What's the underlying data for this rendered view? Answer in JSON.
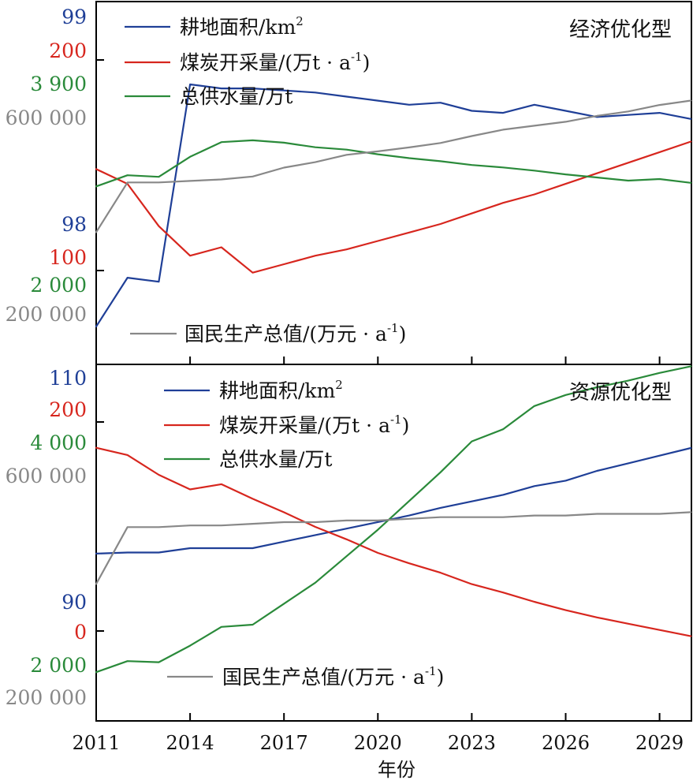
{
  "chart_data": [
    {
      "type": "line",
      "title": "经济优化型",
      "x": [
        2011,
        2012,
        2013,
        2014,
        2015,
        2016,
        2017,
        2018,
        2019,
        2020,
        2021,
        2022,
        2023,
        2024,
        2025,
        2026,
        2027,
        2028,
        2029,
        2030
      ],
      "series": [
        {
          "name": "耕地面积/km",
          "name_sup": "2",
          "color": "#1f3f97",
          "axis": "farmland",
          "values": [
            97.5,
            97.74,
            97.72,
            98.69,
            98.67,
            98.67,
            98.66,
            98.65,
            98.63,
            98.61,
            98.59,
            98.6,
            98.56,
            98.55,
            98.59,
            98.56,
            98.53,
            98.54,
            98.55,
            98.52
          ]
        },
        {
          "name": "煤炭开采量/(万t · a",
          "name_sup": "-1",
          "name_tail": ")",
          "color": "#d7261e",
          "axis": "coal",
          "values": [
            148,
            141,
            121,
            107,
            111,
            99,
            103,
            107,
            110,
            114,
            118,
            122,
            127,
            132,
            136,
            141,
            146,
            151,
            156,
            161
          ]
        },
        {
          "name": "总供水量/万t",
          "color": "#2a8a3a",
          "axis": "water",
          "values": [
            2940,
            3046,
            3031,
            3221,
            3360,
            3377,
            3355,
            3311,
            3289,
            3245,
            3208,
            3179,
            3143,
            3120,
            3090,
            3054,
            3025,
            2995,
            3010,
            2974
          ]
        },
        {
          "name": "国民生产总值/(万元 · a",
          "name_sup": "-1",
          "name_tail": ")",
          "color": "#888888",
          "axis": "gdp",
          "values": [
            369000,
            470000,
            470000,
            473000,
            476000,
            482000,
            500000,
            511000,
            526000,
            533000,
            541000,
            550000,
            564000,
            577000,
            585000,
            593000,
            605000,
            614000,
            627000,
            636000
          ]
        }
      ],
      "axes": {
        "farmland": {
          "ticks": [
            "99",
            "98"
          ],
          "color": "#1f3f97"
        },
        "coal": {
          "ticks": [
            "200",
            "100"
          ],
          "color": "#d7261e"
        },
        "water": {
          "ticks": [
            "3 900",
            "2 000"
          ],
          "color": "#2a8a3a"
        },
        "gdp": {
          "ticks": [
            "600 000",
            "200 000"
          ],
          "color": "#888888"
        }
      }
    },
    {
      "type": "line",
      "title": "资源优化型",
      "x": [
        2011,
        2012,
        2013,
        2014,
        2015,
        2016,
        2017,
        2018,
        2019,
        2020,
        2021,
        2022,
        2023,
        2024,
        2025,
        2026,
        2027,
        2028,
        2029,
        2030
      ],
      "series": [
        {
          "name": "耕地面积/km",
          "name_sup": "2",
          "color": "#1f3f97",
          "axis": "farmland",
          "values": [
            94.5,
            94.6,
            94.6,
            95.0,
            95.0,
            95.0,
            95.6,
            96.2,
            96.8,
            97.4,
            98.0,
            98.7,
            99.3,
            99.9,
            100.7,
            101.2,
            102.1,
            102.8,
            103.5,
            104.2
          ]
        },
        {
          "name": "煤炭开采量/(万t · a",
          "name_sup": "-1",
          "name_tail": ")",
          "color": "#d7261e",
          "axis": "coal",
          "values": [
            176,
            169,
            150,
            136,
            141,
            127,
            114,
            100,
            88,
            75,
            65,
            56,
            45,
            37,
            28,
            20,
            13,
            7,
            1,
            -5
          ]
        },
        {
          "name": "总供水量/万t",
          "color": "#2a8a3a",
          "axis": "water",
          "values": [
            1970,
            2070,
            2060,
            2210,
            2380,
            2400,
            2590,
            2780,
            3020,
            3260,
            3520,
            3780,
            4060,
            4170,
            4380,
            4480,
            4550,
            4610,
            4680,
            4740
          ]
        },
        {
          "name": "国民生产总值/(万元 · a",
          "name_sup": "-1",
          "name_tail": ")",
          "color": "#888888",
          "axis": "gdp",
          "values": [
            408000,
            511000,
            511000,
            514000,
            514000,
            517000,
            520000,
            520000,
            523000,
            523000,
            526000,
            529000,
            529000,
            529000,
            532000,
            532000,
            535000,
            535000,
            535000,
            538000
          ]
        }
      ],
      "axes": {
        "farmland": {
          "ticks": [
            "110",
            "90"
          ],
          "color": "#1f3f97"
        },
        "coal": {
          "ticks": [
            "200",
            "0"
          ],
          "color": "#d7261e"
        },
        "water": {
          "ticks": [
            "4 000",
            "2 000"
          ],
          "color": "#2a8a3a"
        },
        "gdp": {
          "ticks": [
            "600 000",
            "200 000"
          ],
          "color": "#888888"
        }
      }
    }
  ],
  "x_ticks": [
    "2011",
    "2014",
    "2017",
    "2020",
    "2023",
    "2026",
    "2029"
  ],
  "xlabel": "年份"
}
